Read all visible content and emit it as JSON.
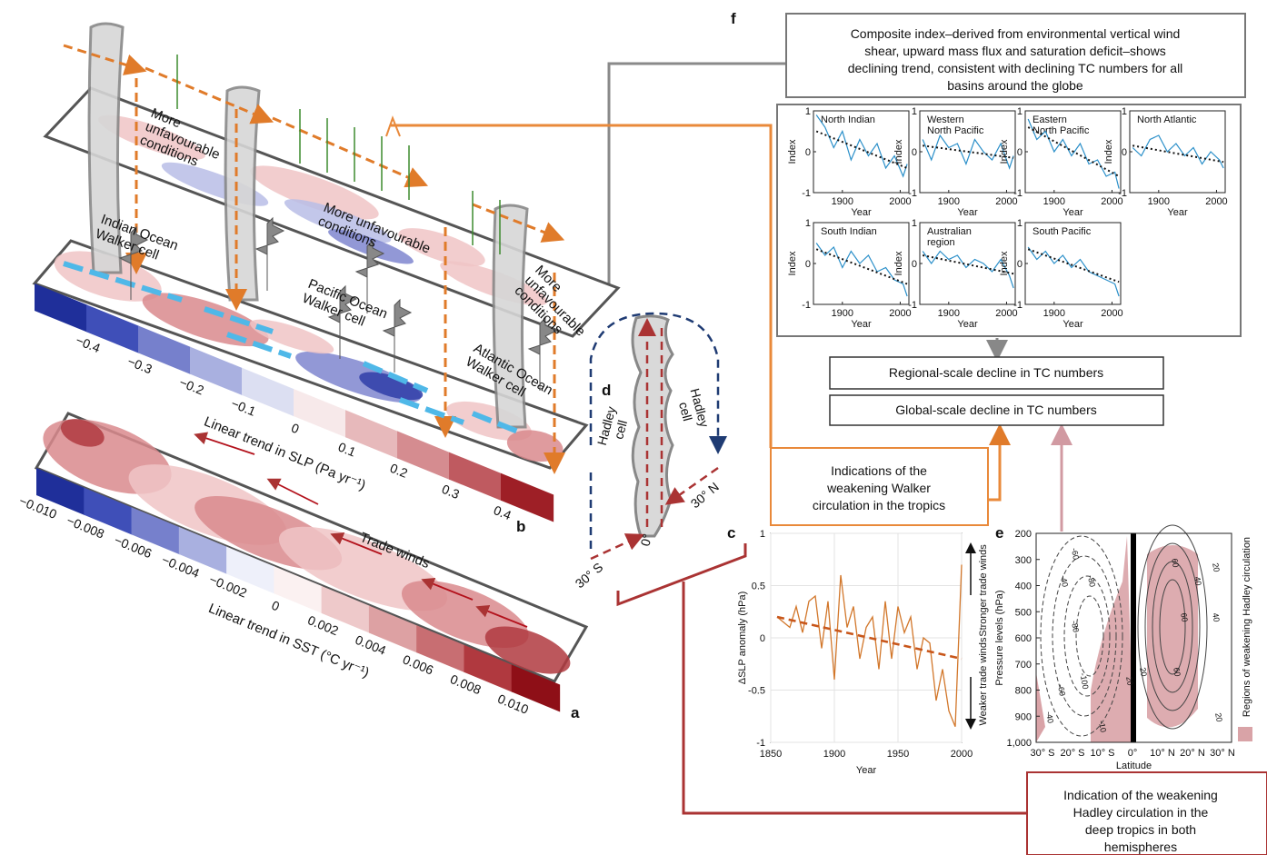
{
  "panel_labels": {
    "a": "a",
    "b": "b",
    "c": "c",
    "d": "d",
    "e": "e",
    "f": "f"
  },
  "maps": {
    "unfavourable_labels": [
      [
        "More",
        "unfavourable",
        "conditions"
      ],
      [
        "More unfavourable",
        "conditions"
      ],
      [
        "More",
        "unfavourable",
        "conditions"
      ]
    ],
    "walker_labels": [
      [
        "Indian Ocean",
        "Walker cell"
      ],
      [
        "Pacific Ocean",
        "Walker cell"
      ],
      [
        "Atlantic Ocean",
        "Walker cell"
      ]
    ],
    "trade_winds": "Trade winds"
  },
  "colorbar_b": {
    "title": "Linear trend in SLP (Pa yr⁻¹)",
    "labels": [
      "−0.4",
      "−0.3",
      "−0.2",
      "−0.1",
      "0",
      "0.1",
      "0.2",
      "0.3",
      "0.4"
    ],
    "colors": [
      "#1f2f9a",
      "#3f4fb8",
      "#7680cc",
      "#a9b0e0",
      "#dcdff2",
      "#f7e9ea",
      "#e7b9bb",
      "#d58c90",
      "#bf5a60",
      "#9e1f26"
    ]
  },
  "colorbar_a": {
    "title": "Linear trend in SST (°C yr⁻¹)",
    "labels": [
      "−0.010",
      "−0.008",
      "−0.006",
      "−0.004",
      "−0.002",
      "0",
      "0.002",
      "0.004",
      "0.006",
      "0.008",
      "0.010"
    ],
    "colors": [
      "#1f2f9a",
      "#3f4fb8",
      "#7680cc",
      "#a9b0e0",
      "#eef0fa",
      "#fbf1f1",
      "#eec9ca",
      "#dda1a3",
      "#c86e72",
      "#b0393f",
      "#8e0f17"
    ]
  },
  "panel_d": {
    "cells": [
      [
        "Hadley",
        "cell"
      ],
      [
        "Hadley",
        "cell"
      ]
    ],
    "latitudes": [
      "30° S",
      "0°",
      "30° N"
    ]
  },
  "panel_f": {
    "summary": [
      "Composite index–derived from environmental vertical wind",
      "shear, upward mass flux and saturation deficit–shows",
      "declining trend, consistent with declining TC numbers for all",
      "basins around the globe"
    ],
    "y_label": "Index",
    "x_label": "Year",
    "xlim": [
      1850,
      2015
    ],
    "ylim": [
      -1,
      1
    ],
    "xticks": [
      1900,
      2000
    ],
    "yticks": [
      -1,
      0,
      1
    ],
    "x": [
      1855,
      1870,
      1885,
      1900,
      1915,
      1930,
      1945,
      1960,
      1975,
      1990,
      2005,
      2012
    ],
    "plots": [
      {
        "name": [
          "North Indian"
        ],
        "values": [
          0.9,
          0.6,
          0.1,
          0.5,
          -0.2,
          0.3,
          -0.1,
          0.2,
          -0.4,
          -0.1,
          -0.6,
          -0.3
        ],
        "trend": [
          0.5,
          -0.4
        ]
      },
      {
        "name": [
          "Western",
          "North Pacific"
        ],
        "values": [
          0.3,
          -0.2,
          0.4,
          0.1,
          0.2,
          -0.3,
          0.3,
          0.0,
          -0.2,
          0.2,
          -0.4,
          -0.1
        ],
        "trend": [
          0.15,
          -0.15
        ]
      },
      {
        "name": [
          "Eastern",
          "North Pacific"
        ],
        "values": [
          0.8,
          0.3,
          0.5,
          0.0,
          0.3,
          -0.1,
          0.2,
          -0.3,
          -0.2,
          -0.6,
          -0.5,
          -0.9
        ],
        "trend": [
          0.6,
          -0.6
        ]
      },
      {
        "name": [
          "North Atlantic"
        ],
        "values": [
          0.1,
          -0.1,
          0.3,
          0.4,
          0.0,
          0.2,
          -0.1,
          0.1,
          -0.3,
          0.0,
          -0.2,
          -0.4
        ],
        "trend": [
          0.15,
          -0.25
        ]
      },
      {
        "name": [
          "South Indian"
        ],
        "values": [
          0.5,
          0.2,
          0.4,
          -0.1,
          0.3,
          0.0,
          0.2,
          -0.2,
          -0.1,
          -0.4,
          -0.5,
          -0.8
        ],
        "trend": [
          0.35,
          -0.5
        ]
      },
      {
        "name": [
          "Australian",
          "region"
        ],
        "values": [
          0.3,
          0.0,
          0.3,
          0.1,
          0.2,
          -0.1,
          0.1,
          0.0,
          -0.2,
          0.1,
          -0.3,
          -0.6
        ],
        "trend": [
          0.2,
          -0.25
        ]
      },
      {
        "name": [
          "South Pacific"
        ],
        "values": [
          0.4,
          0.1,
          0.3,
          0.0,
          0.2,
          -0.1,
          0.1,
          -0.2,
          -0.3,
          -0.4,
          -0.5,
          -0.8
        ],
        "trend": [
          0.35,
          -0.45
        ]
      }
    ]
  },
  "outcomes": [
    "Regional-scale decline in TC numbers",
    "Global-scale decline in TC numbers"
  ],
  "walker_note": [
    "Indications of the",
    "weakening Walker",
    "circulation in the tropics"
  ],
  "hadley_note": [
    "Indication of the weakening",
    "Hadley circulation in the",
    "deep tropics in both",
    "hemispheres"
  ],
  "panel_c": {
    "x_label": "Year",
    "y_label": "ΔSLP anomaly (hPa)",
    "annotations": [
      "Stronger trade winds",
      "Weaker trade winds"
    ],
    "xlim": [
      1850,
      2000
    ],
    "ylim": [
      -1,
      1
    ],
    "xticks": [
      1850,
      1900,
      1950,
      2000
    ],
    "yticks": [
      -1,
      -0.5,
      0,
      0.5,
      1
    ],
    "x": [
      1855,
      1860,
      1865,
      1870,
      1875,
      1880,
      1885,
      1890,
      1895,
      1900,
      1905,
      1910,
      1915,
      1920,
      1925,
      1930,
      1935,
      1940,
      1945,
      1950,
      1955,
      1960,
      1965,
      1970,
      1975,
      1980,
      1985,
      1990,
      1995,
      2000
    ],
    "values": [
      0.2,
      0.15,
      0.1,
      0.3,
      0.05,
      0.35,
      0.4,
      -0.1,
      0.35,
      -0.4,
      0.6,
      0.1,
      0.3,
      -0.2,
      0.1,
      0.2,
      -0.3,
      0.35,
      -0.2,
      0.3,
      0.05,
      0.2,
      -0.3,
      0.0,
      -0.05,
      -0.6,
      -0.3,
      -0.7,
      -0.85,
      0.7
    ],
    "trend": {
      "x": [
        1855,
        2000
      ],
      "values": [
        0.2,
        -0.2
      ]
    }
  },
  "panel_e": {
    "x_label": "Latitude",
    "y_label": "Pressure levels (hPa)",
    "legend": "Regions of weakening Hadley circulation",
    "xticks": [
      "30° S",
      "20° S",
      "10° S",
      "0°",
      "10° N",
      "20° N",
      "30° N"
    ],
    "yticks": [
      200,
      300,
      400,
      500,
      600,
      700,
      800,
      900,
      {
        "value": 1000,
        "label": "1,000"
      }
    ],
    "contour_labels": [
      "-40",
      "-60",
      "-80",
      "-80",
      "-100",
      "-60",
      "-40",
      "-10",
      "60",
      "60",
      "60",
      "40",
      "20",
      "20",
      "40",
      "20",
      "20"
    ]
  }
}
